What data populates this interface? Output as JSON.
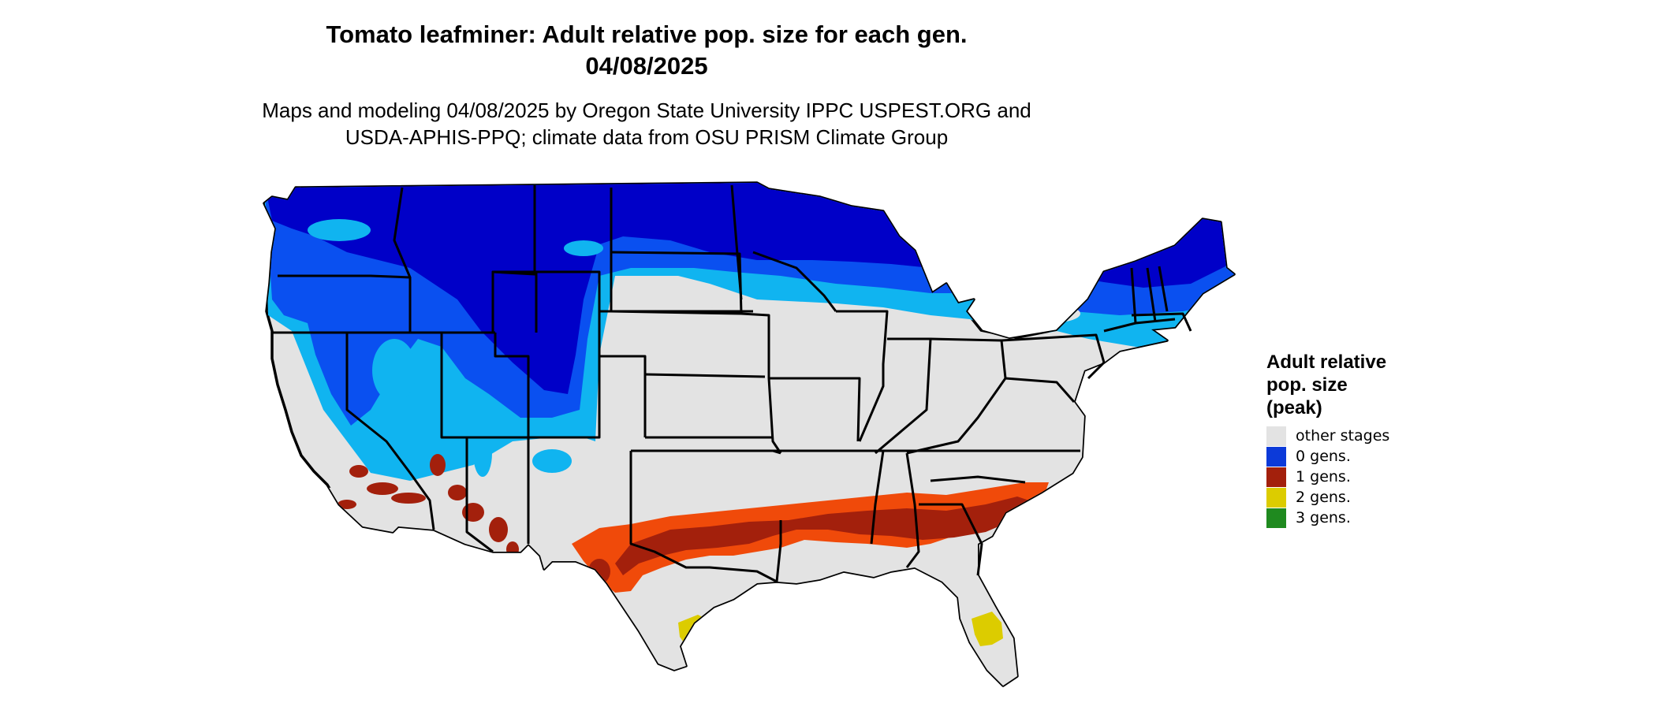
{
  "header": {
    "title_line1": "Tomato leafminer: Adult relative pop. size for each gen.",
    "title_line2": "04/08/2025",
    "subtitle_line1": "Maps and modeling 04/08/2025 by Oregon State University IPPC USPEST.ORG and",
    "subtitle_line2": "USDA-APHIS-PPQ; climate data from OSU PRISM Climate Group"
  },
  "legend": {
    "title_line1": "Adult relative",
    "title_line2": "pop. size",
    "title_line3": "(peak)",
    "items": [
      {
        "label": "other stages",
        "color": "#e3e3e3"
      },
      {
        "label": "0 gens.",
        "color": "#0c3ad9"
      },
      {
        "label": "1 gens.",
        "color": "#a3200c"
      },
      {
        "label": "2 gens.",
        "color": "#dccc00"
      },
      {
        "label": "3 gens.",
        "color": "#1f8a1f"
      }
    ]
  },
  "map": {
    "base_color": "#e3e3e3",
    "zero_gen_dark": "#0000c8",
    "zero_gen_mid": "#0a50f0",
    "zero_gen_light": "#10b4f0",
    "one_gen_dark": "#a3200c",
    "one_gen_light": "#f04a0a",
    "two_gen": "#dccc00",
    "three_gen": "#1f8a1f",
    "border_color": "#000000"
  }
}
